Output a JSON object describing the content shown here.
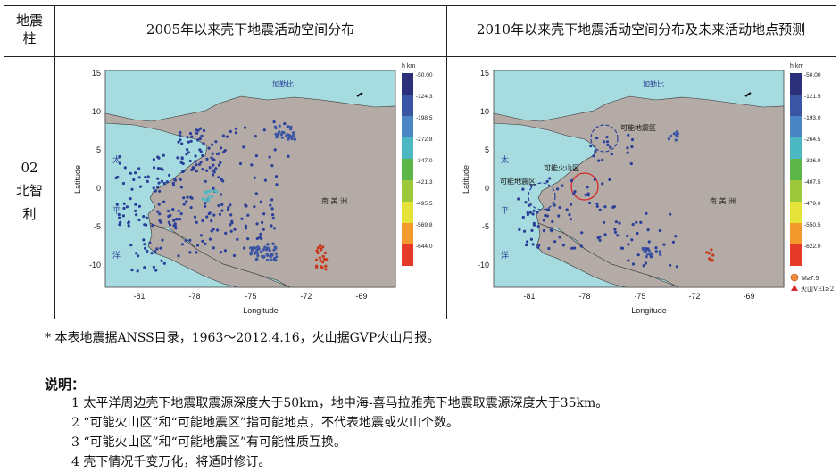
{
  "table": {
    "col1_header_line1": "地震",
    "col1_header_line2": "柱",
    "col2_header": "2005年以来壳下地震活动空间分布",
    "col3_header": "2010年以来壳下地震活动空间分布及未来活动地点预测",
    "row_label_line1": "02",
    "row_label_line2": "北智",
    "row_label_line3": "利"
  },
  "map_common": {
    "x_ticks": [
      "-81",
      "-78",
      "-75",
      "-72",
      "-69"
    ],
    "y_ticks": [
      "15",
      "10",
      "5",
      "0",
      "-5",
      "-10"
    ],
    "xlabel": "Longitude",
    "ylabel": "Latitude",
    "caribbean_label": "加勒比",
    "south_america_label": "南 美 洲",
    "pacific_label_1": "太",
    "pacific_label_2": "平",
    "pacific_label_3": "洋",
    "legend_title": "h  km",
    "colors": {
      "ocean": "#a6dcdf",
      "land": "#b4aaa6",
      "dot_blue": "#2a3f9a",
      "dot_red": "#c8381b"
    }
  },
  "map_left": {
    "legend_values": [
      "-50.00",
      "-124.3",
      "-198.5",
      "-272.8",
      "-347.0",
      "-421.3",
      "-495.5",
      "-569.8",
      "-644.0"
    ]
  },
  "map_right": {
    "legend_values": [
      "-50.00",
      "-121.5",
      "-193.0",
      "-264.5",
      "-336.0",
      "-407.5",
      "-479.0",
      "-550.5",
      "-622.0"
    ],
    "zone_label_1": "可能地震区",
    "zone_label_2": "可能火山区",
    "zone_label_3": "可能地震区",
    "legend_m": "M≥7.5",
    "legend_volcano": "火山VEI≥2"
  },
  "footnote": "* 本表地震据ANSS目录，1963～2012.4.16，火山据GVP火山月报。",
  "notes": {
    "title": "说明：",
    "items": [
      "1 太平洋周边壳下地震取震源深度大于50km，地中海-喜马拉雅壳下地震取震源深度大于35km。",
      "2 “可能火山区”和“可能地震区”指可能地点，不代表地震或火山个数。",
      "3 “可能火山区”和“可能地震区”有可能性质互换。",
      "4 壳下情况千变万化，将适时修订。"
    ]
  }
}
